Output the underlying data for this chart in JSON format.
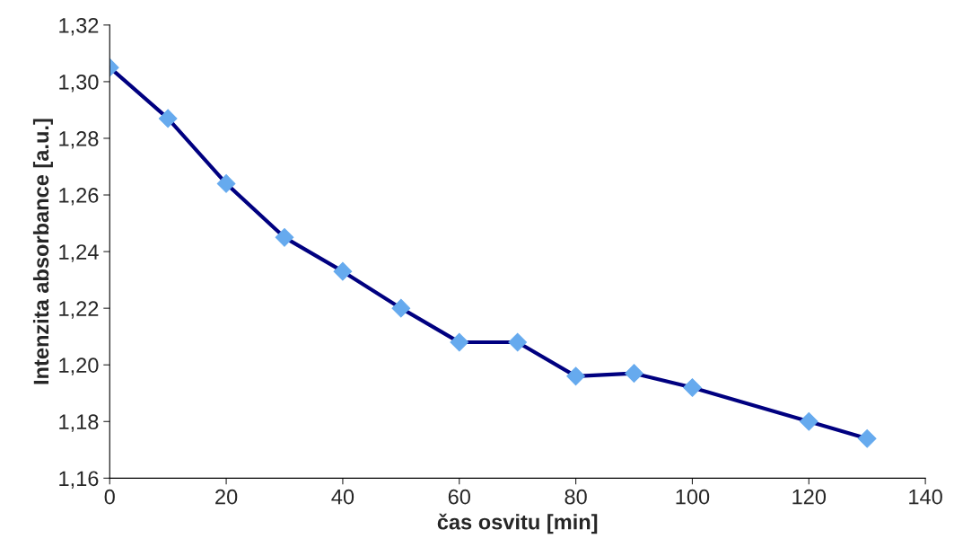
{
  "chart_data": {
    "type": "line",
    "xlabel": "čas osvitu [min]",
    "ylabel": "Intenzita absorbance [a.u.]",
    "x": [
      0,
      10,
      20,
      30,
      40,
      50,
      60,
      70,
      80,
      90,
      100,
      120,
      130
    ],
    "series": [
      {
        "color": "#000080",
        "values": [
          1.305,
          1.287,
          1.264,
          1.245,
          1.233,
          1.22,
          1.208,
          1.208,
          1.196,
          1.197,
          1.192,
          1.18,
          1.174
        ]
      }
    ],
    "marker": "diamond",
    "line_style": "solid",
    "grid": false,
    "legend": false,
    "xlim": [
      0,
      140
    ],
    "xticks": [
      0,
      20,
      40,
      60,
      80,
      100,
      120,
      140
    ],
    "ylim": [
      1.16,
      1.32
    ],
    "yticks": [
      {
        "value": 1.16,
        "label": "1,16"
      },
      {
        "value": 1.18,
        "label": "1,18"
      },
      {
        "value": 1.2,
        "label": "1,20"
      },
      {
        "value": 1.22,
        "label": "1,22"
      },
      {
        "value": 1.24,
        "label": "1,24"
      },
      {
        "value": 1.26,
        "label": "1,26"
      },
      {
        "value": 1.28,
        "label": "1,28"
      },
      {
        "value": 1.3,
        "label": "1,30"
      },
      {
        "value": 1.32,
        "label": "1,32"
      }
    ]
  }
}
